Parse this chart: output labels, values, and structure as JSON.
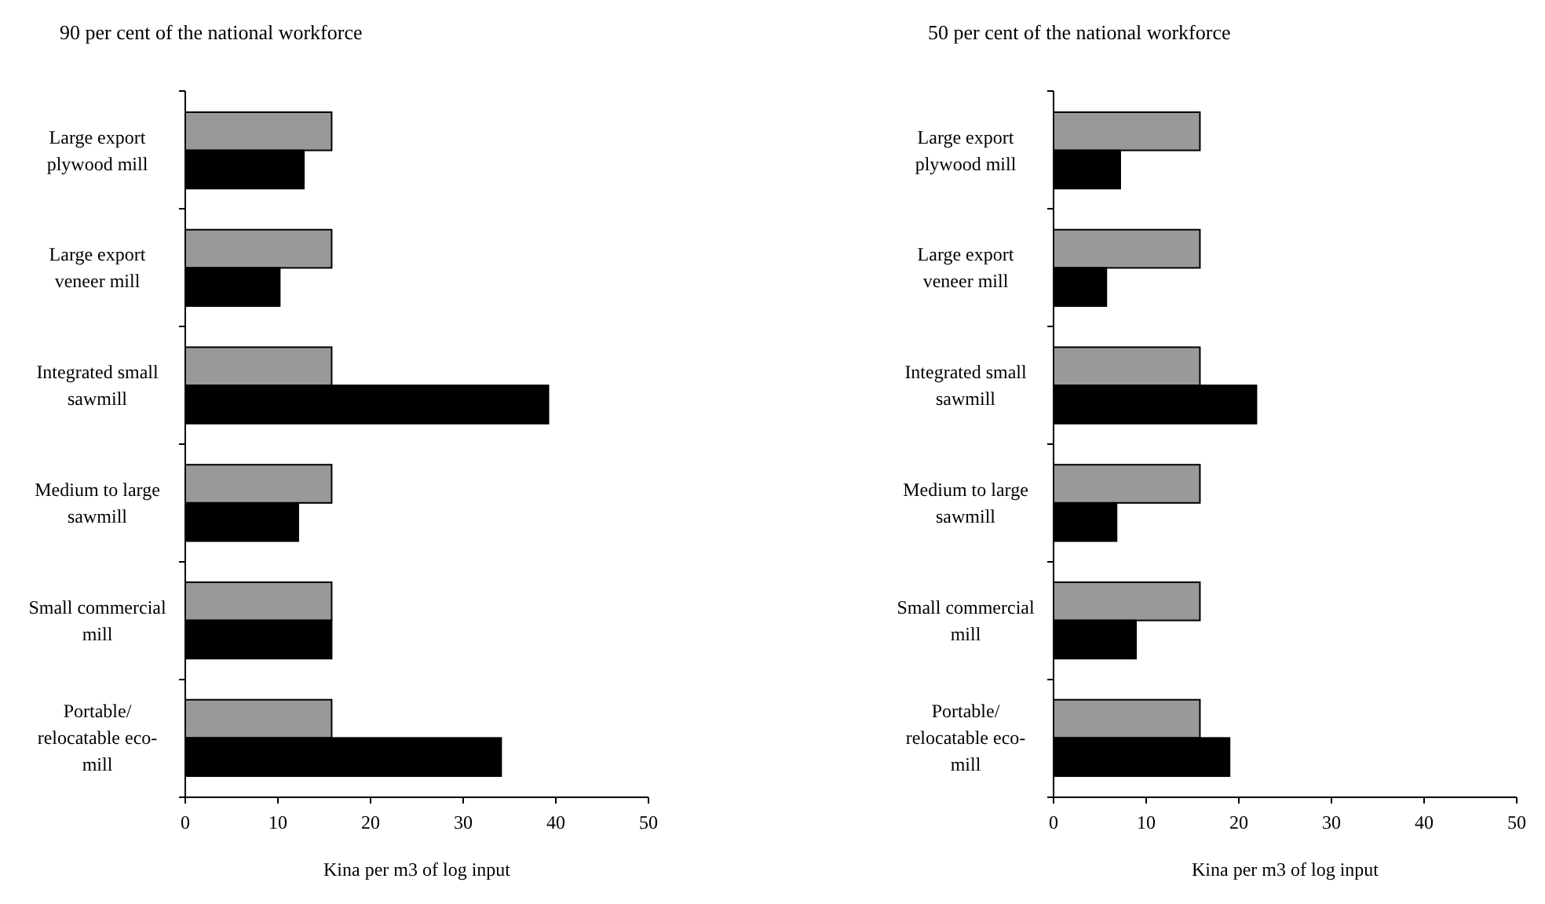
{
  "chart_data": [
    {
      "type": "bar",
      "orientation": "horizontal",
      "title": "90 per cent of the national workforce",
      "xlabel": "Kina per m3 of log input",
      "categories": [
        "Large export plywood mill",
        "Large export veneer mill",
        "Integrated small sawmill",
        "Medium to large sawmill",
        "Small commercial mill",
        "Portable/ relocatable eco-mill"
      ],
      "series": [
        {
          "color": "#999999",
          "values": [
            15.8,
            15.8,
            15.8,
            15.8,
            15.8,
            15.8
          ]
        },
        {
          "color": "#000000",
          "values": [
            12.8,
            10.2,
            39.2,
            12.2,
            15.8,
            34.1
          ]
        }
      ],
      "xlim": [
        0,
        50
      ],
      "xticks": [
        0,
        10,
        20,
        30,
        40,
        50
      ]
    },
    {
      "type": "bar",
      "orientation": "horizontal",
      "title": "50 per cent of the national workforce",
      "xlabel": "Kina per m3 of log input",
      "categories": [
        "Large export plywood mill",
        "Large export veneer mill",
        "Integrated small sawmill",
        "Medium to large sawmill",
        "Small commercial mill",
        "Portable/ relocatable eco-mill"
      ],
      "series": [
        {
          "color": "#999999",
          "values": [
            15.8,
            15.8,
            15.8,
            15.8,
            15.8,
            15.8
          ]
        },
        {
          "color": "#000000",
          "values": [
            7.2,
            5.7,
            21.9,
            6.8,
            8.9,
            19.0
          ]
        }
      ],
      "xlim": [
        0,
        50
      ],
      "xticks": [
        0,
        10,
        20,
        30,
        40,
        50
      ]
    }
  ]
}
